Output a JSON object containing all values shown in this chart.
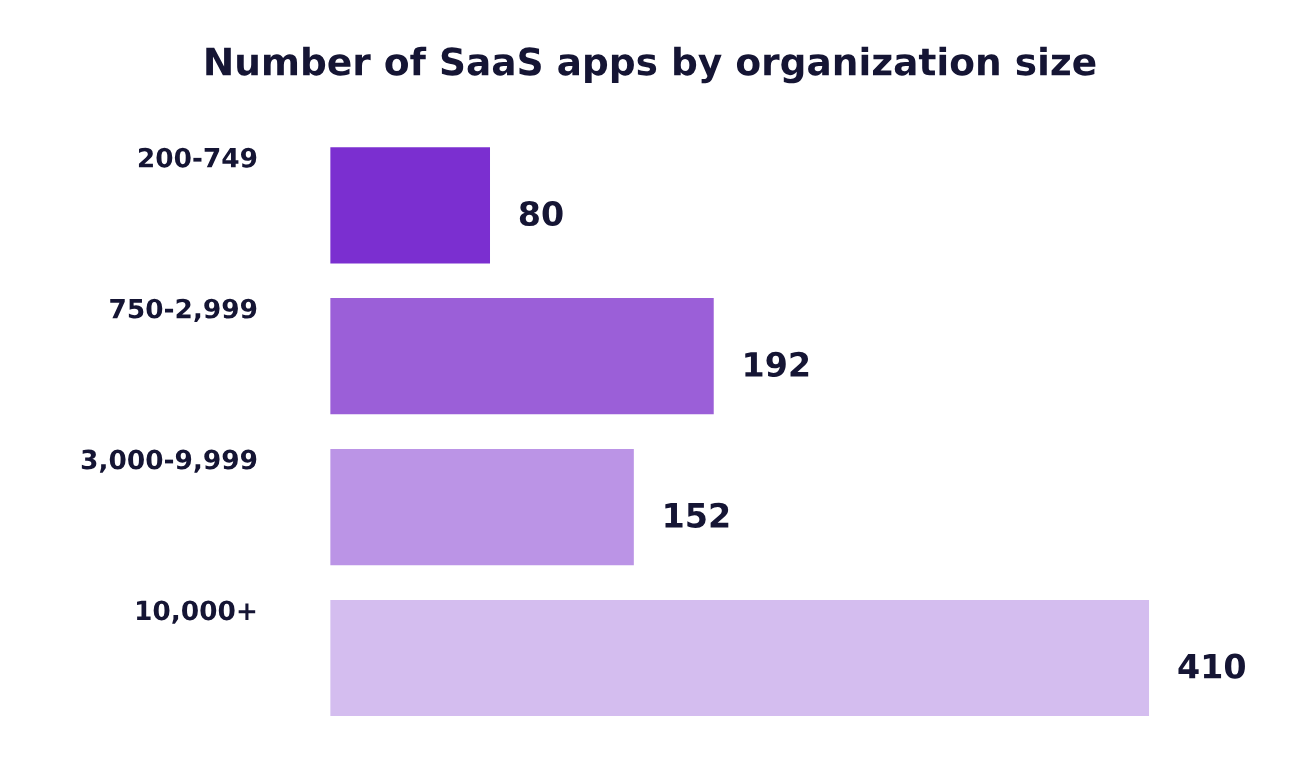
{
  "chart_data": {
    "type": "bar",
    "orientation": "horizontal",
    "title": "Number of SaaS apps by organization size",
    "categories": [
      "200-749",
      "750-2,999",
      "3,000-9,999",
      "10,000+"
    ],
    "values": [
      80,
      192,
      152,
      410
    ],
    "colors": [
      "#7b2fd0",
      "#9b5fd8",
      "#bb94e6",
      "#d4bdef"
    ],
    "data_labels": true
  }
}
